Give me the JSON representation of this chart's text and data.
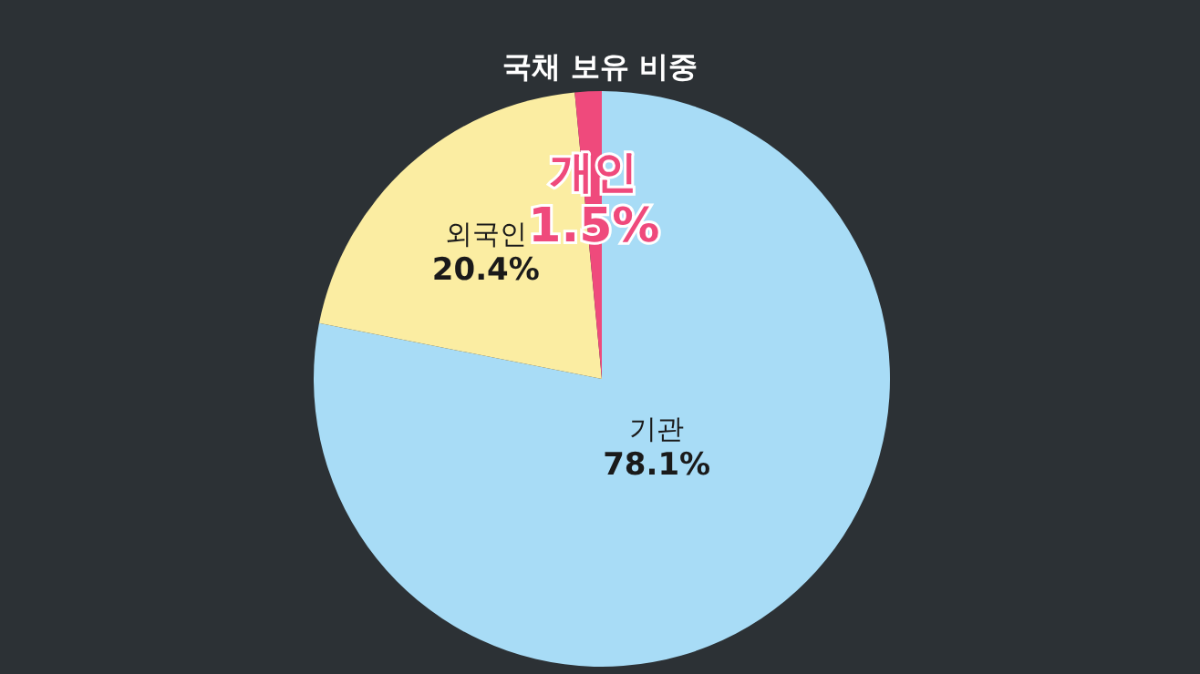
{
  "chart_data": {
    "type": "pie",
    "title": "국채 보유 비중",
    "categories": [
      "기관",
      "외국인",
      "개인"
    ],
    "values": [
      78.1,
      20.4,
      1.5
    ],
    "colors": [
      "#a8dcf6",
      "#fbeda2",
      "#ef4a7c"
    ],
    "value_labels": [
      "78.1%",
      "20.4%",
      "1.5%"
    ]
  }
}
